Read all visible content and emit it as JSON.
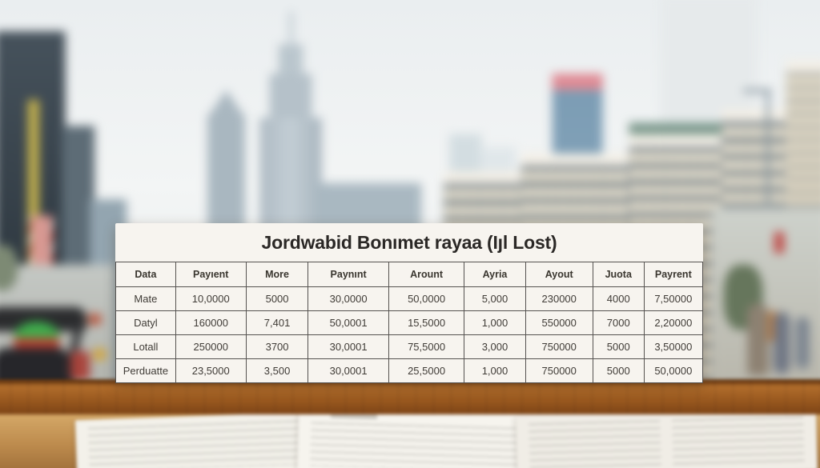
{
  "chart_data": {
    "type": "table",
    "title": "Jordwabid Bonımet rayaa (Iȷl Lost)",
    "columns": [
      "Data",
      "Payıent",
      "More",
      "Paynınt",
      "Arount",
      "Ayria",
      "Ayout",
      "Juota",
      "Payrent"
    ],
    "rows": [
      [
        "Mate",
        "10,0000",
        "5000",
        "30,0000",
        "50,0000",
        "5,000",
        "230000",
        "4000",
        "7,50000"
      ],
      [
        "Datyl",
        "160000",
        "7,401",
        "50,0001",
        "15,5000",
        "1,000",
        "550000",
        "7000",
        "2,20000"
      ],
      [
        "Lotall",
        "250000",
        "3700",
        "30,0001",
        "75,5000",
        "3,000",
        "750000",
        "5000",
        "3,50000"
      ],
      [
        "Perduatte",
        "23,5000",
        "3,500",
        "30,0001",
        "25,5000",
        "1,000",
        "750000",
        "5000",
        "50,0000"
      ]
    ],
    "layout_hints": {
      "header_row": true,
      "grid": true,
      "title_position": "top-center"
    }
  },
  "colors": {
    "card_background": "#f7f4ef",
    "grid_line": "#555250",
    "title_text": "#2b2826",
    "desk_wood": "#9a591f",
    "flag_red": "#bf4a47",
    "helmet_green": "#3fae4d",
    "helmet_red": "#bf4034"
  }
}
